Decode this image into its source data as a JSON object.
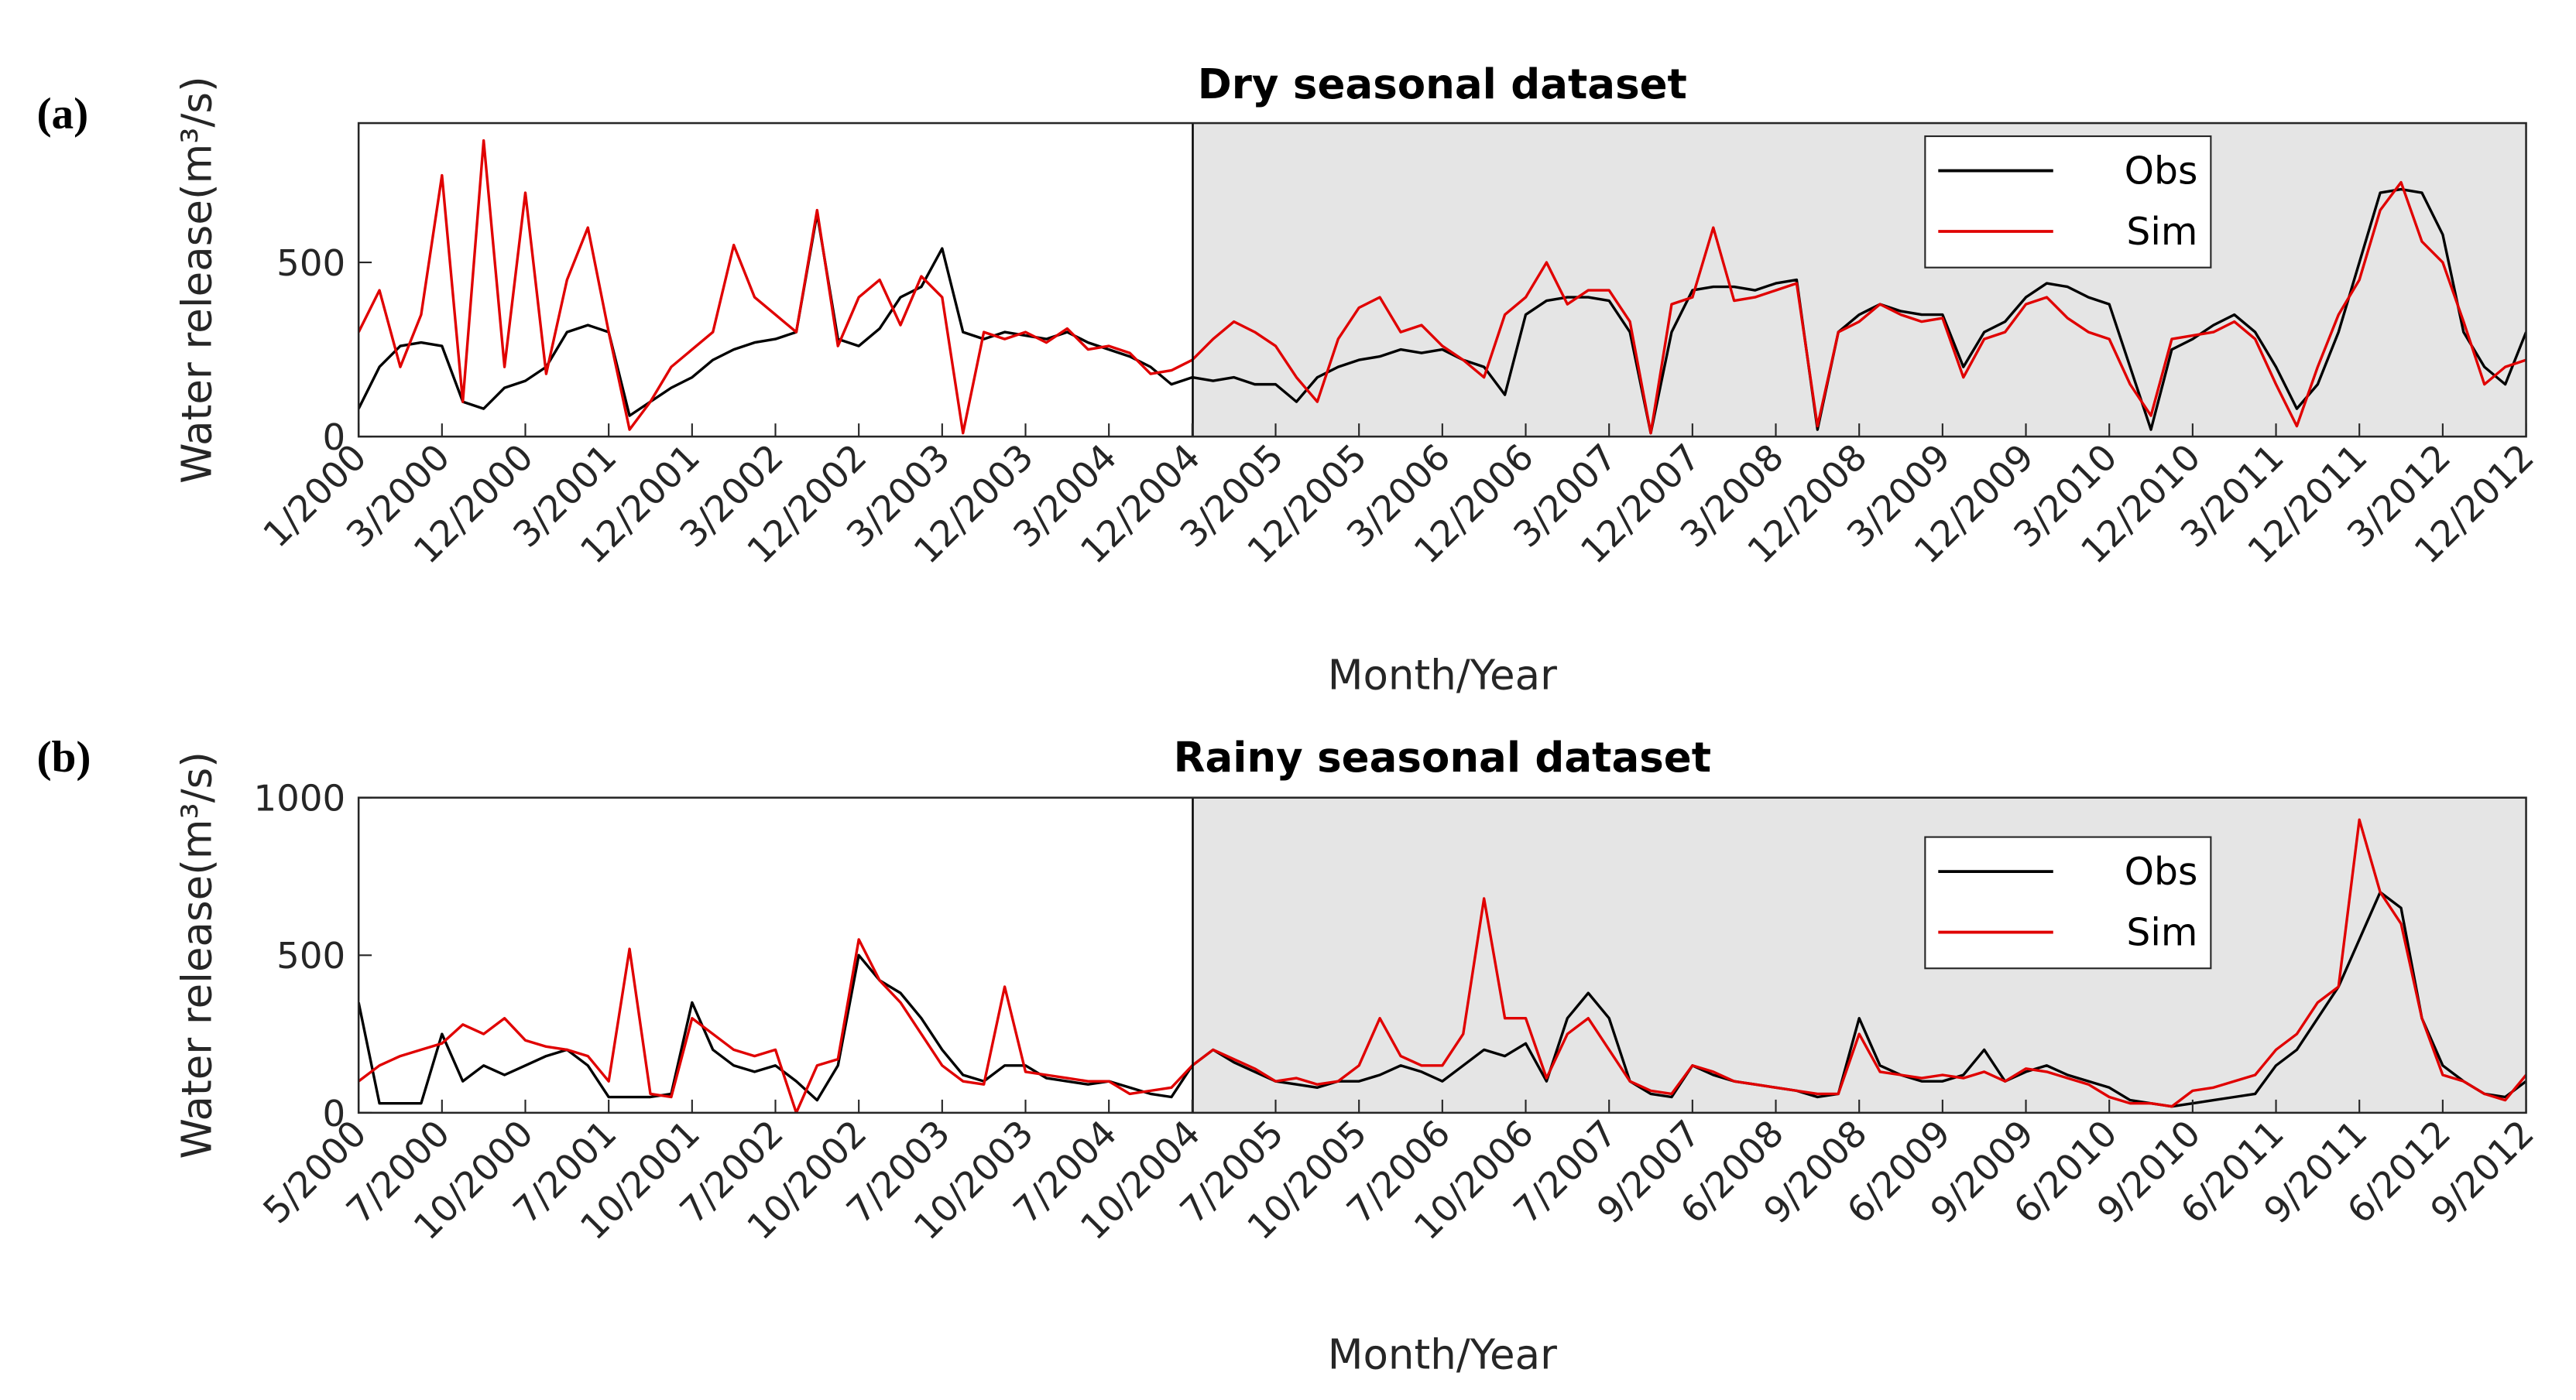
{
  "chart_data": [
    {
      "type": "line",
      "label": "(a)",
      "title": "Dry seasonal dataset",
      "xlabel": "Month/Year",
      "ylabel": "Water release(m³/s)",
      "categories": [
        "1/2000",
        null,
        null,
        null,
        "3/2000",
        null,
        null,
        null,
        "12/2000",
        null,
        null,
        null,
        "3/2001",
        null,
        null,
        null,
        "12/2001",
        null,
        null,
        null,
        "3/2002",
        null,
        null,
        null,
        "12/2002",
        null,
        null,
        null,
        "3/2003",
        null,
        null,
        null,
        "12/2003",
        null,
        null,
        null,
        "3/2004",
        null,
        null,
        null,
        "12/2004",
        null,
        null,
        null,
        "3/2005",
        null,
        null,
        null,
        "12/2005",
        null,
        null,
        null,
        "3/2006",
        null,
        null,
        null,
        "12/2006",
        null,
        null,
        null,
        "3/2007",
        null,
        null,
        null,
        "12/2007",
        null,
        null,
        null,
        "3/2008",
        null,
        null,
        null,
        "12/2008",
        null,
        null,
        null,
        "3/2009",
        null,
        null,
        null,
        "12/2009",
        null,
        null,
        null,
        "3/2010",
        null,
        null,
        null,
        "12/2010",
        null,
        null,
        null,
        "3/2011",
        null,
        null,
        null,
        "12/2011",
        null,
        null,
        null,
        "3/2012",
        null,
        null,
        null,
        "12/2012"
      ],
      "series": [
        {
          "name": "Obs",
          "color": "#000000",
          "values": [
            80,
            200,
            260,
            270,
            260,
            100,
            80,
            140,
            160,
            200,
            300,
            320,
            300,
            60,
            100,
            140,
            170,
            220,
            250,
            270,
            280,
            300,
            640,
            280,
            260,
            310,
            400,
            430,
            540,
            300,
            280,
            300,
            290,
            280,
            300,
            270,
            250,
            230,
            200,
            150,
            170,
            160,
            170,
            150,
            150,
            100,
            170,
            200,
            220,
            230,
            250,
            240,
            250,
            220,
            200,
            120,
            350,
            390,
            400,
            400,
            390,
            300,
            10,
            300,
            420,
            430,
            430,
            420,
            440,
            450,
            20,
            300,
            350,
            380,
            360,
            350,
            350,
            200,
            300,
            330,
            400,
            440,
            430,
            400,
            380,
            200,
            20,
            250,
            280,
            320,
            350,
            300,
            200,
            80,
            150,
            300,
            500,
            700,
            710,
            700,
            580,
            300,
            200,
            150,
            300
          ]
        },
        {
          "name": "Sim",
          "color": "#e00000",
          "values": [
            300,
            420,
            200,
            350,
            750,
            100,
            850,
            200,
            700,
            180,
            450,
            600,
            300,
            20,
            100,
            200,
            250,
            300,
            550,
            400,
            350,
            300,
            650,
            260,
            400,
            450,
            320,
            460,
            400,
            10,
            300,
            280,
            300,
            270,
            310,
            250,
            260,
            240,
            180,
            190,
            220,
            280,
            330,
            300,
            260,
            170,
            100,
            280,
            370,
            400,
            300,
            320,
            260,
            220,
            170,
            350,
            400,
            500,
            380,
            420,
            420,
            330,
            10,
            380,
            400,
            600,
            390,
            400,
            420,
            440,
            30,
            300,
            330,
            380,
            350,
            330,
            340,
            170,
            280,
            300,
            380,
            400,
            340,
            300,
            280,
            150,
            60,
            280,
            290,
            300,
            330,
            280,
            150,
            30,
            200,
            350,
            450,
            650,
            730,
            560,
            500,
            330,
            150,
            200,
            220
          ]
        }
      ],
      "ylim": [
        0,
        900
      ],
      "yticks": [
        0,
        500
      ],
      "legend": "upper right"
    },
    {
      "type": "line",
      "label": "(b)",
      "title": "Rainy seasonal dataset",
      "xlabel": "Month/Year",
      "ylabel": "Water release(m³/s)",
      "categories": [
        "5/2000",
        null,
        null,
        null,
        "7/2000",
        null,
        null,
        null,
        "10/2000",
        null,
        null,
        null,
        "7/2001",
        null,
        null,
        null,
        "10/2001",
        null,
        null,
        null,
        "7/2002",
        null,
        null,
        null,
        "10/2002",
        null,
        null,
        null,
        "7/2003",
        null,
        null,
        null,
        "10/2003",
        null,
        null,
        null,
        "7/2004",
        null,
        null,
        null,
        "10/2004",
        null,
        null,
        null,
        "7/2005",
        null,
        null,
        null,
        "10/2005",
        null,
        null,
        null,
        "7/2006",
        null,
        null,
        null,
        "10/2006",
        null,
        null,
        null,
        "7/2007",
        null,
        null,
        null,
        "9/2007",
        null,
        null,
        null,
        "6/2008",
        null,
        null,
        null,
        "9/2008",
        null,
        null,
        null,
        "6/2009",
        null,
        null,
        null,
        "9/2009",
        null,
        null,
        null,
        "6/2010",
        null,
        null,
        null,
        "9/2010",
        null,
        null,
        null,
        "6/2011",
        null,
        null,
        null,
        "9/2011",
        null,
        null,
        null,
        "6/2012",
        null,
        null,
        null,
        "9/2012"
      ],
      "series": [
        {
          "name": "Obs",
          "color": "#000000",
          "values": [
            350,
            30,
            30,
            30,
            250,
            100,
            150,
            120,
            150,
            180,
            200,
            150,
            50,
            50,
            50,
            60,
            350,
            200,
            150,
            130,
            150,
            100,
            40,
            150,
            500,
            420,
            380,
            300,
            200,
            120,
            100,
            150,
            150,
            110,
            100,
            90,
            100,
            80,
            60,
            50,
            150,
            200,
            160,
            130,
            100,
            90,
            80,
            100,
            100,
            120,
            150,
            130,
            100,
            150,
            200,
            180,
            220,
            100,
            300,
            380,
            300,
            100,
            60,
            50,
            150,
            120,
            100,
            90,
            80,
            70,
            50,
            60,
            300,
            150,
            120,
            100,
            100,
            120,
            200,
            100,
            130,
            150,
            120,
            100,
            80,
            40,
            30,
            20,
            30,
            40,
            50,
            60,
            150,
            200,
            300,
            400,
            550,
            700,
            650,
            300,
            150,
            100,
            60,
            50,
            100
          ]
        },
        {
          "name": "Sim",
          "color": "#e00000",
          "values": [
            100,
            150,
            180,
            200,
            220,
            280,
            250,
            300,
            230,
            210,
            200,
            180,
            100,
            520,
            60,
            50,
            300,
            250,
            200,
            180,
            200,
            0,
            150,
            170,
            550,
            420,
            350,
            250,
            150,
            100,
            90,
            400,
            130,
            120,
            110,
            100,
            100,
            60,
            70,
            80,
            150,
            200,
            170,
            140,
            100,
            110,
            90,
            100,
            150,
            300,
            180,
            150,
            150,
            250,
            680,
            300,
            300,
            110,
            250,
            300,
            200,
            100,
            70,
            60,
            150,
            130,
            100,
            90,
            80,
            70,
            60,
            60,
            250,
            130,
            120,
            110,
            120,
            110,
            130,
            100,
            140,
            130,
            110,
            90,
            50,
            30,
            30,
            20,
            70,
            80,
            100,
            120,
            200,
            250,
            350,
            400,
            930,
            700,
            600,
            300,
            120,
            100,
            60,
            40,
            120
          ]
        }
      ],
      "ylim": [
        0,
        1000
      ],
      "yticks": [
        0,
        500,
        1000
      ],
      "legend": "upper right"
    }
  ]
}
